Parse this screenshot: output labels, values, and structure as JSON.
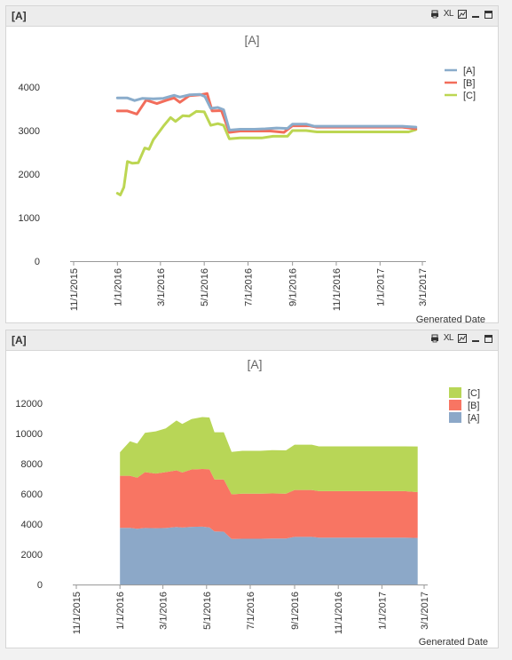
{
  "panels": [
    {
      "caption": "[A]",
      "xl_label": "XL",
      "chart_data": {
        "type": "line",
        "title": "[A]",
        "xlabel": "Generated Date",
        "ylabel": "",
        "ylim": [
          0,
          4000
        ],
        "yticks": [
          0,
          1000,
          2000,
          3000,
          4000
        ],
        "x_tick_labels": [
          "11/1/2015",
          "1/1/2016",
          "3/1/2016",
          "5/1/2016",
          "7/1/2016",
          "9/1/2016",
          "11/1/2016",
          "1/1/2017",
          "3/1/2017"
        ],
        "legend_position": "top-right",
        "colors": {
          "[A]": "#8aaccb",
          "[B]": "#f26d5b",
          "[C]": "#bcd652"
        },
        "series": [
          {
            "name": "[A]",
            "points": [
              [
                "2016-01-01",
                3750
              ],
              [
                "2016-01-15",
                3750
              ],
              [
                "2016-01-25",
                3690
              ],
              [
                "2016-02-05",
                3740
              ],
              [
                "2016-02-20",
                3730
              ],
              [
                "2016-03-05",
                3740
              ],
              [
                "2016-03-20",
                3810
              ],
              [
                "2016-03-28",
                3770
              ],
              [
                "2016-04-10",
                3820
              ],
              [
                "2016-04-25",
                3830
              ],
              [
                "2016-05-02",
                3780
              ],
              [
                "2016-05-10",
                3510
              ],
              [
                "2016-05-20",
                3530
              ],
              [
                "2016-05-28",
                3480
              ],
              [
                "2016-06-05",
                3010
              ],
              [
                "2016-06-20",
                3030
              ],
              [
                "2016-07-10",
                3030
              ],
              [
                "2016-07-25",
                3040
              ],
              [
                "2016-08-10",
                3060
              ],
              [
                "2016-08-25",
                3050
              ],
              [
                "2016-09-01",
                3150
              ],
              [
                "2016-09-20",
                3150
              ],
              [
                "2016-10-01",
                3100
              ],
              [
                "2016-12-01",
                3100
              ],
              [
                "2017-02-01",
                3100
              ],
              [
                "2017-02-20",
                3080
              ]
            ]
          },
          {
            "name": "[B]",
            "points": [
              [
                "2016-01-01",
                3450
              ],
              [
                "2016-01-15",
                3450
              ],
              [
                "2016-01-28",
                3380
              ],
              [
                "2016-02-10",
                3700
              ],
              [
                "2016-02-25",
                3620
              ],
              [
                "2016-03-10",
                3700
              ],
              [
                "2016-03-20",
                3750
              ],
              [
                "2016-03-28",
                3650
              ],
              [
                "2016-04-10",
                3800
              ],
              [
                "2016-04-25",
                3820
              ],
              [
                "2016-05-05",
                3850
              ],
              [
                "2016-05-12",
                3450
              ],
              [
                "2016-05-25",
                3460
              ],
              [
                "2016-06-05",
                2960
              ],
              [
                "2016-06-20",
                2990
              ],
              [
                "2016-07-15",
                2990
              ],
              [
                "2016-08-01",
                2990
              ],
              [
                "2016-08-20",
                2960
              ],
              [
                "2016-09-01",
                3110
              ],
              [
                "2016-09-25",
                3110
              ],
              [
                "2016-10-05",
                3080
              ],
              [
                "2016-12-01",
                3080
              ],
              [
                "2017-02-01",
                3080
              ],
              [
                "2017-02-20",
                3040
              ]
            ]
          },
          {
            "name": "[C]",
            "points": [
              [
                "2016-01-01",
                1560
              ],
              [
                "2016-01-05",
                1520
              ],
              [
                "2016-01-10",
                1700
              ],
              [
                "2016-01-15",
                2290
              ],
              [
                "2016-01-22",
                2250
              ],
              [
                "2016-01-30",
                2260
              ],
              [
                "2016-02-08",
                2600
              ],
              [
                "2016-02-14",
                2570
              ],
              [
                "2016-02-20",
                2790
              ],
              [
                "2016-03-05",
                3100
              ],
              [
                "2016-03-15",
                3300
              ],
              [
                "2016-03-22",
                3210
              ],
              [
                "2016-04-01",
                3340
              ],
              [
                "2016-04-10",
                3330
              ],
              [
                "2016-04-20",
                3440
              ],
              [
                "2016-05-01",
                3430
              ],
              [
                "2016-05-10",
                3120
              ],
              [
                "2016-05-20",
                3160
              ],
              [
                "2016-05-28",
                3120
              ],
              [
                "2016-06-05",
                2810
              ],
              [
                "2016-06-20",
                2830
              ],
              [
                "2016-07-20",
                2830
              ],
              [
                "2016-08-05",
                2870
              ],
              [
                "2016-08-25",
                2870
              ],
              [
                "2016-09-01",
                3000
              ],
              [
                "2016-09-20",
                3000
              ],
              [
                "2016-10-05",
                2970
              ],
              [
                "2016-12-01",
                2970
              ],
              [
                "2017-02-10",
                2970
              ],
              [
                "2017-02-20",
                3020
              ]
            ]
          }
        ]
      }
    },
    {
      "caption": "[A]",
      "xl_label": "XL",
      "chart_data": {
        "type": "area",
        "stacked": true,
        "title": "[A]",
        "xlabel": "Generated Date",
        "ylabel": "",
        "ylim": [
          0,
          12000
        ],
        "yticks": [
          0,
          2000,
          4000,
          6000,
          8000,
          10000,
          12000
        ],
        "x_tick_labels": [
          "11/1/2015",
          "1/1/2016",
          "3/1/2016",
          "5/1/2016",
          "7/1/2016",
          "9/1/2016",
          "11/1/2016",
          "1/1/2017",
          "3/1/2017"
        ],
        "legend_position": "top-right",
        "colors": {
          "[A]": "#8ca8c8",
          "[B]": "#f87563",
          "[C]": "#b8d657"
        },
        "x": [
          "2016-01-01",
          "2016-01-15",
          "2016-01-25",
          "2016-02-05",
          "2016-02-20",
          "2016-03-05",
          "2016-03-20",
          "2016-03-28",
          "2016-04-10",
          "2016-04-25",
          "2016-05-05",
          "2016-05-12",
          "2016-05-25",
          "2016-06-05",
          "2016-06-20",
          "2016-07-15",
          "2016-08-01",
          "2016-08-20",
          "2016-09-01",
          "2016-09-25",
          "2016-10-05",
          "2016-12-01",
          "2017-02-01",
          "2017-02-20"
        ],
        "series": [
          {
            "name": "[A]",
            "values": [
              3750,
              3750,
              3690,
              3740,
              3730,
              3740,
              3810,
              3770,
              3820,
              3830,
              3780,
              3510,
              3500,
              3010,
              3030,
              3030,
              3040,
              3050,
              3150,
              3150,
              3100,
              3100,
              3100,
              3080
            ]
          },
          {
            "name": "[B]",
            "values": [
              3450,
              3450,
              3380,
              3700,
              3620,
              3700,
              3750,
              3650,
              3800,
              3820,
              3850,
              3450,
              3460,
              2960,
              2990,
              2990,
              2990,
              2960,
              3110,
              3110,
              3080,
              3080,
              3080,
              3040
            ]
          },
          {
            "name": "[C]",
            "values": [
              1560,
              2290,
              2260,
              2600,
              2790,
              2900,
              3300,
              3210,
              3340,
              3440,
              3430,
              3120,
              3120,
              2810,
              2830,
              2830,
              2870,
              2870,
              3000,
              3000,
              2970,
              2970,
              2970,
              3020
            ]
          }
        ]
      }
    }
  ]
}
